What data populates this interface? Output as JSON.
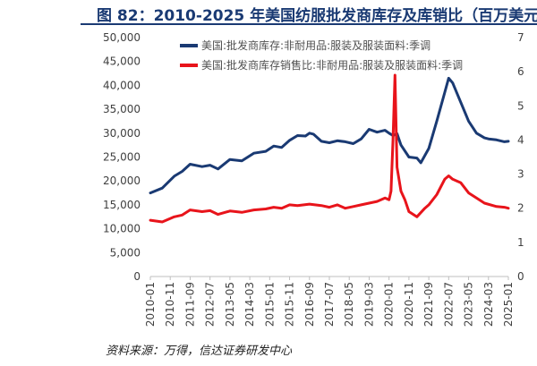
{
  "title": "图 82：2010-2025 年美国纺服批发商库存及库销比（百万美元",
  "source": "资料来源：万得，信达证券研发中心",
  "chart_data": {
    "type": "line",
    "x_ticks": [
      "2010-01",
      "2010-11",
      "2011-09",
      "2012-07",
      "2013-05",
      "2014-03",
      "2015-01",
      "2015-11",
      "2016-09",
      "2017-07",
      "2018-05",
      "2019-03",
      "2020-01",
      "2020-11",
      "2021-09",
      "2022-07",
      "2023-05",
      "2024-03",
      "2025-01"
    ],
    "y_left": {
      "min": 0,
      "max": 50000,
      "ticks": [
        "0",
        "5,000",
        "10,000",
        "15,000",
        "20,000",
        "25,000",
        "30,000",
        "35,000",
        "40,000",
        "45,000",
        "50,000"
      ]
    },
    "y_right": {
      "min": 0,
      "max": 7,
      "ticks": [
        "0",
        "1",
        "2",
        "3",
        "4",
        "5",
        "6",
        "7"
      ]
    },
    "grid": false,
    "legend_position": "top",
    "series": [
      {
        "name": "美国:批发商库存:非耐用品:服装及服装面料:季调",
        "axis": "left",
        "color": "#1a3a73",
        "points": [
          [
            "2010-01",
            17500
          ],
          [
            "2010-07",
            18500
          ],
          [
            "2011-01",
            21000
          ],
          [
            "2011-05",
            22000
          ],
          [
            "2011-09",
            23500
          ],
          [
            "2012-03",
            23000
          ],
          [
            "2012-07",
            23300
          ],
          [
            "2012-11",
            22500
          ],
          [
            "2013-05",
            24500
          ],
          [
            "2013-11",
            24200
          ],
          [
            "2014-05",
            25800
          ],
          [
            "2014-11",
            26200
          ],
          [
            "2015-03",
            27300
          ],
          [
            "2015-07",
            27000
          ],
          [
            "2015-11",
            28500
          ],
          [
            "2016-03",
            29500
          ],
          [
            "2016-07",
            29400
          ],
          [
            "2016-09",
            30000
          ],
          [
            "2016-11",
            29800
          ],
          [
            "2017-03",
            28300
          ],
          [
            "2017-07",
            28000
          ],
          [
            "2017-11",
            28400
          ],
          [
            "2018-03",
            28200
          ],
          [
            "2018-07",
            27800
          ],
          [
            "2018-11",
            28800
          ],
          [
            "2019-03",
            30800
          ],
          [
            "2019-07",
            30200
          ],
          [
            "2019-11",
            30600
          ],
          [
            "2020-01",
            30000
          ],
          [
            "2020-03",
            29500
          ],
          [
            "2020-05",
            29900
          ],
          [
            "2020-07",
            27500
          ],
          [
            "2020-11",
            25000
          ],
          [
            "2021-03",
            24800
          ],
          [
            "2021-05",
            23800
          ],
          [
            "2021-09",
            26800
          ],
          [
            "2022-01",
            32500
          ],
          [
            "2022-05",
            38500
          ],
          [
            "2022-07",
            41500
          ],
          [
            "2022-09",
            40500
          ],
          [
            "2023-01",
            36500
          ],
          [
            "2023-05",
            32500
          ],
          [
            "2023-09",
            30000
          ],
          [
            "2024-01",
            29000
          ],
          [
            "2024-03",
            28800
          ],
          [
            "2024-07",
            28600
          ],
          [
            "2024-11",
            28200
          ],
          [
            "2025-01",
            28300
          ]
        ]
      },
      {
        "name": "美国:批发商库存销售比:非耐用品:服装及服装面料:季调",
        "axis": "right",
        "color": "#e8141b",
        "points": [
          [
            "2010-01",
            1.65
          ],
          [
            "2010-07",
            1.6
          ],
          [
            "2011-01",
            1.75
          ],
          [
            "2011-05",
            1.8
          ],
          [
            "2011-09",
            1.95
          ],
          [
            "2012-03",
            1.9
          ],
          [
            "2012-07",
            1.93
          ],
          [
            "2012-11",
            1.82
          ],
          [
            "2013-05",
            1.92
          ],
          [
            "2013-11",
            1.88
          ],
          [
            "2014-05",
            1.95
          ],
          [
            "2014-11",
            1.98
          ],
          [
            "2015-03",
            2.03
          ],
          [
            "2015-07",
            2.0
          ],
          [
            "2015-11",
            2.1
          ],
          [
            "2016-03",
            2.08
          ],
          [
            "2016-09",
            2.12
          ],
          [
            "2017-03",
            2.08
          ],
          [
            "2017-07",
            2.03
          ],
          [
            "2017-11",
            2.1
          ],
          [
            "2018-03",
            2.0
          ],
          [
            "2018-07",
            2.05
          ],
          [
            "2018-11",
            2.1
          ],
          [
            "2019-03",
            2.15
          ],
          [
            "2019-07",
            2.2
          ],
          [
            "2019-11",
            2.3
          ],
          [
            "2020-01",
            2.25
          ],
          [
            "2020-02",
            2.5
          ],
          [
            "2020-03",
            4.0
          ],
          [
            "2020-04",
            5.9
          ],
          [
            "2020-05",
            3.2
          ],
          [
            "2020-07",
            2.5
          ],
          [
            "2020-09",
            2.25
          ],
          [
            "2020-11",
            1.9
          ],
          [
            "2021-03",
            1.75
          ],
          [
            "2021-07",
            2.0
          ],
          [
            "2021-09",
            2.1
          ],
          [
            "2022-01",
            2.4
          ],
          [
            "2022-05",
            2.85
          ],
          [
            "2022-07",
            2.95
          ],
          [
            "2022-09",
            2.85
          ],
          [
            "2023-01",
            2.75
          ],
          [
            "2023-05",
            2.45
          ],
          [
            "2023-09",
            2.3
          ],
          [
            "2024-01",
            2.15
          ],
          [
            "2024-07",
            2.05
          ],
          [
            "2024-11",
            2.03
          ],
          [
            "2025-01",
            2.0
          ]
        ]
      }
    ]
  }
}
